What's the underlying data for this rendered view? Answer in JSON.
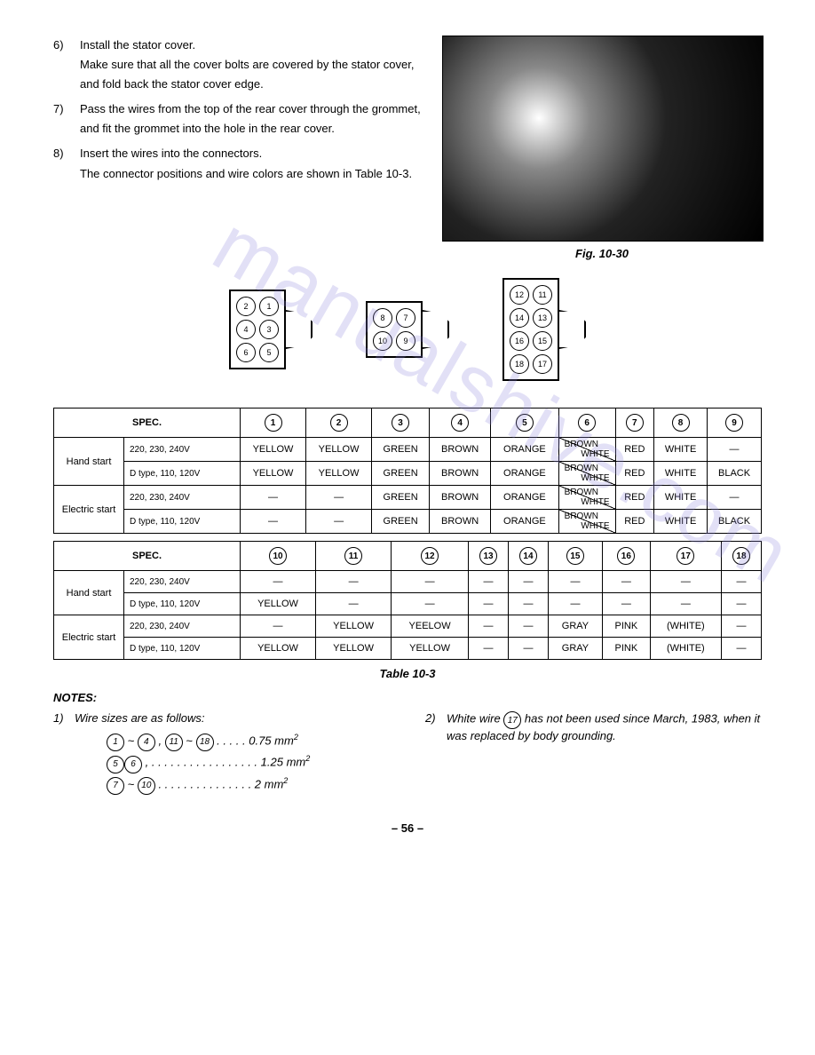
{
  "steps": [
    {
      "num": "6)",
      "text": "Install the stator cover.\nMake sure that all the cover bolts are covered by the stator cover, and fold back the stator cover edge."
    },
    {
      "num": "7)",
      "text": "Pass the wires from the top of the rear cover through the grommet, and fit the grommet into the hole in the rear cover."
    },
    {
      "num": "8)",
      "text": "Insert the wires into the connectors.\nThe connector positions and wire colors are shown in Table 10-3."
    }
  ],
  "fig_caption": "Fig. 10-30",
  "connectors": [
    {
      "rows": 3,
      "pins": [
        "2",
        "1",
        "4",
        "3",
        "6",
        "5"
      ]
    },
    {
      "rows": 2,
      "pins": [
        "8",
        "7",
        "10",
        "9"
      ]
    },
    {
      "rows": 4,
      "pins": [
        "12",
        "11",
        "14",
        "13",
        "16",
        "15",
        "18",
        "17"
      ]
    }
  ],
  "table1": {
    "spec_label": "SPEC.",
    "headers": [
      "1",
      "2",
      "3",
      "4",
      "5",
      "6",
      "7",
      "8",
      "9"
    ],
    "groups": [
      {
        "label": "Hand start",
        "rows": [
          {
            "spec": "220, 230, 240V",
            "cells": [
              "YELLOW",
              "YELLOW",
              "GREEN",
              "BROWN",
              "ORANGE",
              {
                "diag": [
                  "BROWN",
                  "WHITE"
                ]
              },
              "RED",
              "WHITE",
              "—"
            ]
          },
          {
            "spec": "D type, 110, 120V",
            "cells": [
              "YELLOW",
              "YELLOW",
              "GREEN",
              "BROWN",
              "ORANGE",
              {
                "diag": [
                  "BROWN",
                  "WHITE"
                ]
              },
              "RED",
              "WHITE",
              "BLACK"
            ]
          }
        ]
      },
      {
        "label": "Electric start",
        "rows": [
          {
            "spec": "220, 230, 240V",
            "cells": [
              "—",
              "—",
              "GREEN",
              "BROWN",
              "ORANGE",
              {
                "diag": [
                  "BROWN",
                  "WHITE"
                ]
              },
              "RED",
              "WHITE",
              "—"
            ]
          },
          {
            "spec": "D type, 110, 120V",
            "cells": [
              "—",
              "—",
              "GREEN",
              "BROWN",
              "ORANGE",
              {
                "diag": [
                  "BROWN",
                  "WHITE"
                ]
              },
              "RED",
              "WHITE",
              "BLACK"
            ]
          }
        ]
      }
    ]
  },
  "table2": {
    "spec_label": "SPEC.",
    "headers": [
      "10",
      "11",
      "12",
      "13",
      "14",
      "15",
      "16",
      "17",
      "18"
    ],
    "groups": [
      {
        "label": "Hand start",
        "rows": [
          {
            "spec": "220, 230, 240V",
            "cells": [
              "—",
              "—",
              "—",
              "—",
              "—",
              "—",
              "—",
              "—",
              "—"
            ]
          },
          {
            "spec": "D type, 110, 120V",
            "cells": [
              "YELLOW",
              "—",
              "—",
              "—",
              "—",
              "—",
              "—",
              "—",
              "—"
            ]
          }
        ]
      },
      {
        "label": "Electric start",
        "rows": [
          {
            "spec": "220, 230, 240V",
            "cells": [
              "—",
              "YELLOW",
              "YEELOW",
              "—",
              "—",
              "GRAY",
              "PINK",
              "(WHITE)",
              "—"
            ]
          },
          {
            "spec": "D type, 110, 120V",
            "cells": [
              "YELLOW",
              "YELLOW",
              "YELLOW",
              "—",
              "—",
              "GRAY",
              "PINK",
              "(WHITE)",
              "—"
            ]
          }
        ]
      }
    ]
  },
  "table_caption": "Table 10-3",
  "notes_title": "NOTES:",
  "note1_num": "1)",
  "note1_text": "Wire sizes are as follows:",
  "wire_sizes": [
    {
      "range_a": "1",
      "sep1": "~",
      "range_b": "4",
      "comma": ",",
      "range_c": "11",
      "sep2": "~",
      "range_d": "18",
      "dots": " . . . . .",
      "val": "0.75 mm",
      "sup": "2"
    },
    {
      "range_a": "5",
      "comma": ",",
      "range_b": "6",
      "dots": " . . . . . . . . . . . . . . . . .",
      "val": "1.25 mm",
      "sup": "2"
    },
    {
      "range_a": "7",
      "sep1": "~",
      "range_b": "10",
      "dots": " . . . . . . . . . . . . . . .",
      "val": "2 mm",
      "sup": "2"
    }
  ],
  "note2_num": "2)",
  "note2_text_a": "White wire ",
  "note2_circled": "17",
  "note2_text_b": " has not been used since March, 1983, when it was replaced by body grounding.",
  "page_num": "– 56 –",
  "watermark": "manualshive.com"
}
